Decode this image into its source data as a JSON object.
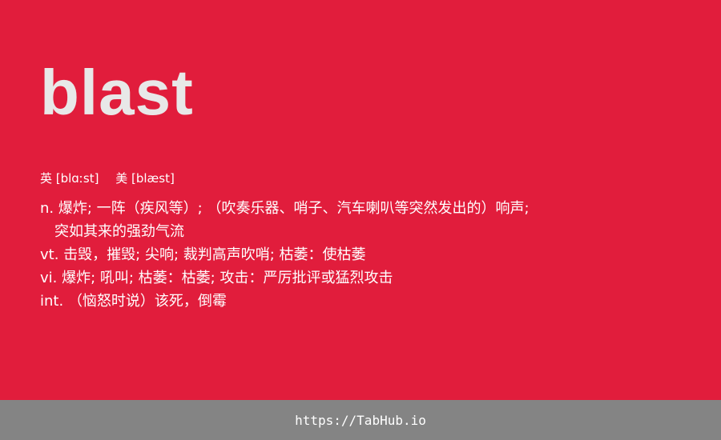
{
  "word": "blast",
  "phonetics": {
    "uk": "英 [blɑːst]",
    "us": "美 [blæst]"
  },
  "definitions": [
    {
      "pos": "n.",
      "text": "爆炸; 一阵（疾风等）; （吹奏乐器、哨子、汽车喇叭等突然发出的）响声;"
    },
    {
      "pos": "",
      "text": "突如其来的强劲气流"
    },
    {
      "pos": "vt.",
      "text": "击毁，摧毁; 尖响; 裁判高声吹哨; 枯萎：使枯萎"
    },
    {
      "pos": "vi.",
      "text": "爆炸; 吼叫; 枯萎：枯萎; 攻击：严厉批评或猛烈攻击"
    },
    {
      "pos": "int.",
      "text": "（恼怒时说）该死，倒霉"
    }
  ],
  "footer": {
    "url": "https://TabHub.io"
  },
  "colors": {
    "card_background": "#e11d3c",
    "footer_background": "#848484",
    "word_color": "#e8e8e8",
    "text_color": "#ffffff"
  }
}
